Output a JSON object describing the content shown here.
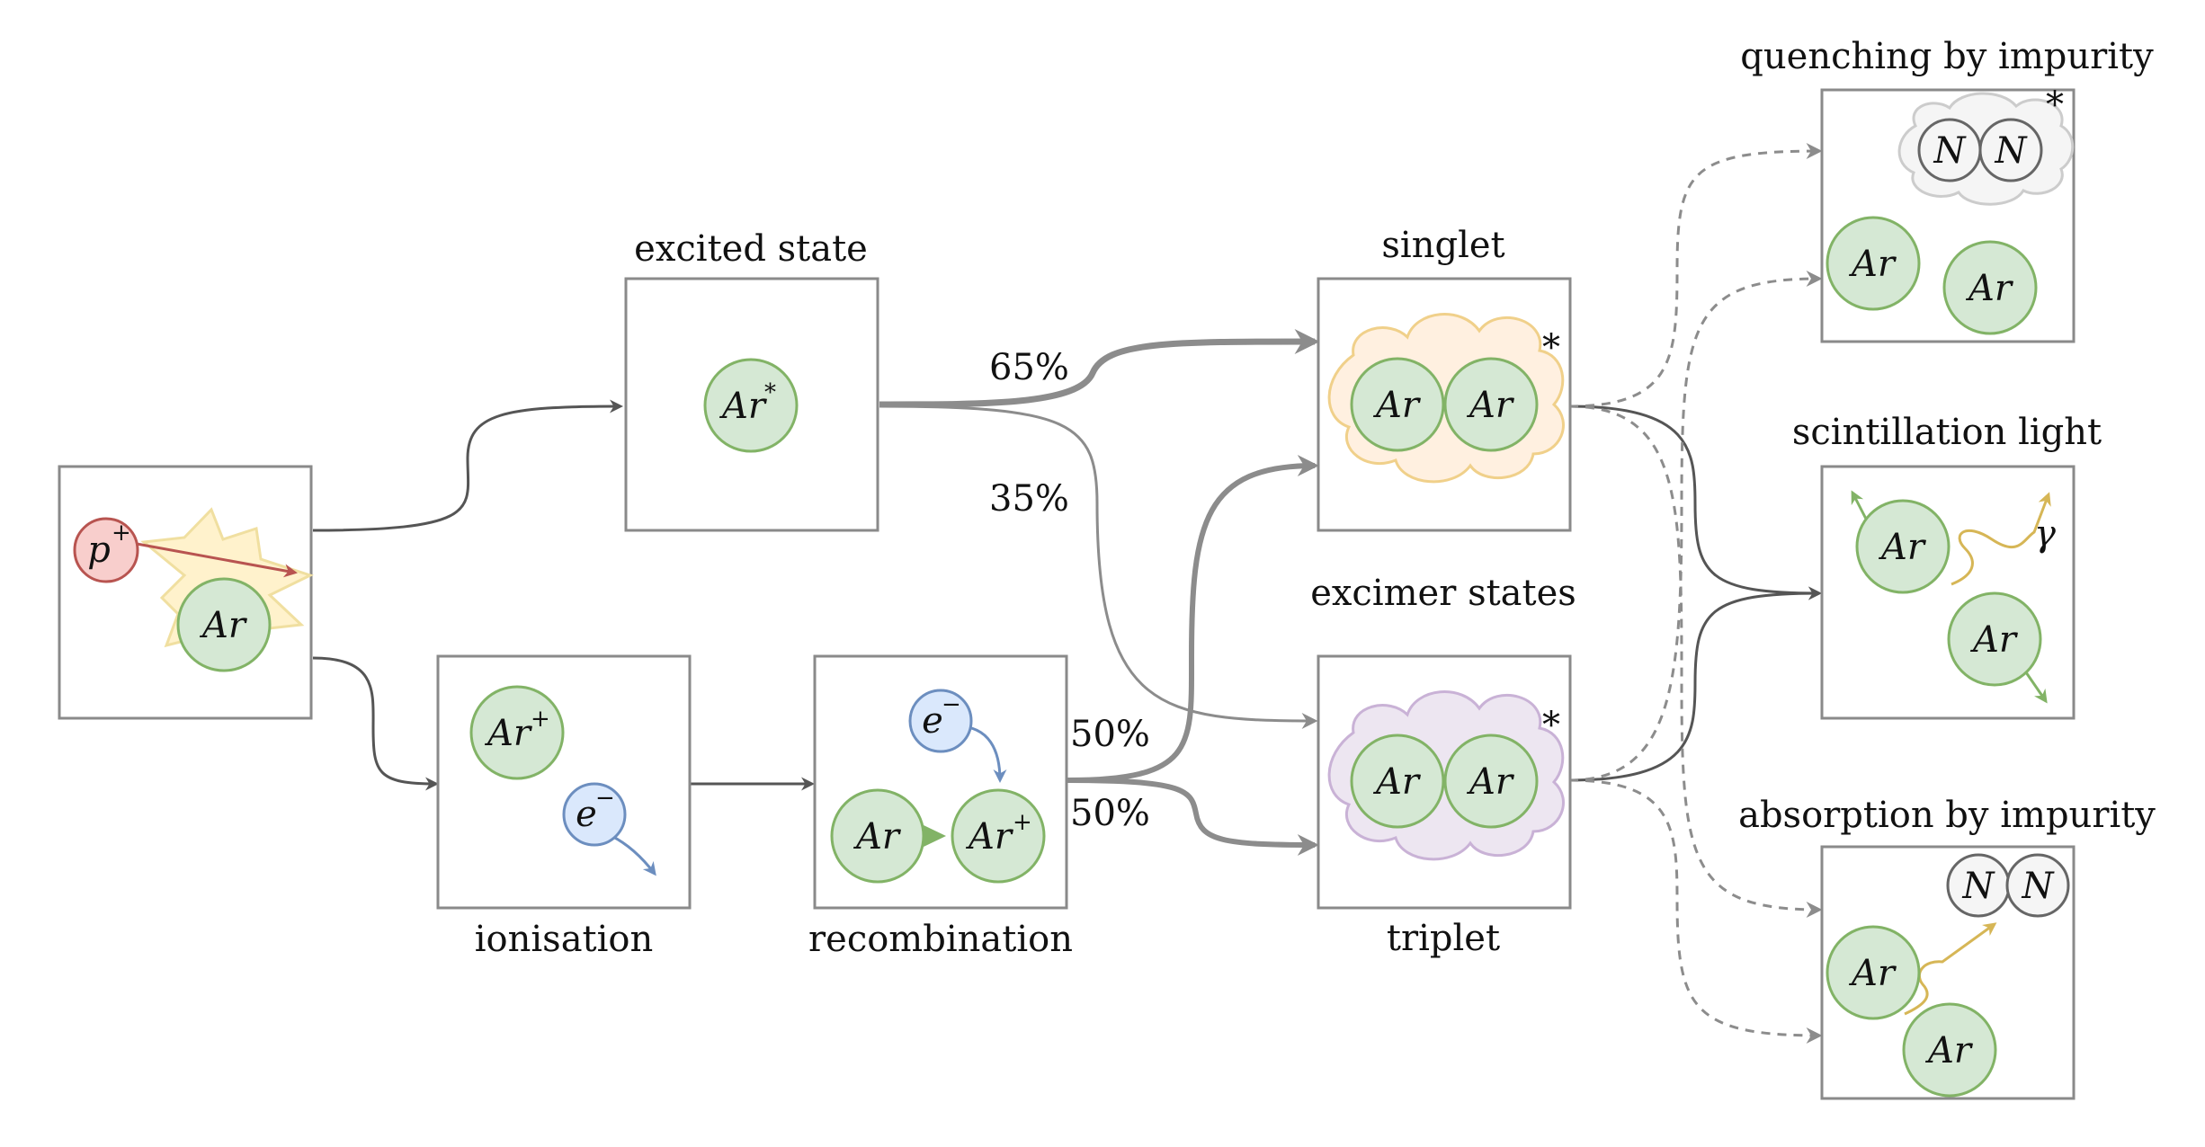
{
  "labels": {
    "excited_state": "excited state",
    "ionisation": "ionisation",
    "recombination": "recombination",
    "singlet": "singlet",
    "excimer_states": "excimer states",
    "triplet": "triplet",
    "quenching": "quenching by impurity",
    "scintillation": "scintillation light",
    "absorption": "absorption by impurity"
  },
  "percentages": {
    "excited_to_singlet": "65%",
    "excited_to_triplet": "35%",
    "recomb_to_singlet": "50%",
    "recomb_to_triplet": "50%"
  },
  "particles": {
    "argon": "Ar",
    "proton": "p",
    "electron": "e",
    "nitrogen": "N",
    "photon": "γ",
    "plus": "+",
    "minus": "−",
    "star": "*"
  },
  "colors": {
    "argon_fill": "#d5e8d4",
    "argon_stroke": "#82b366",
    "electron_fill": "#dae8fc",
    "electron_stroke": "#6c8ebf",
    "proton_fill": "#f8cecc",
    "proton_stroke": "#b85450",
    "singlet_cloud": "#ffe6cc",
    "triplet_cloud": "#e1d5e7",
    "photon": "#d6b656",
    "arrow_dark": "#555555",
    "arrow_gray": "#8c8c8c"
  }
}
